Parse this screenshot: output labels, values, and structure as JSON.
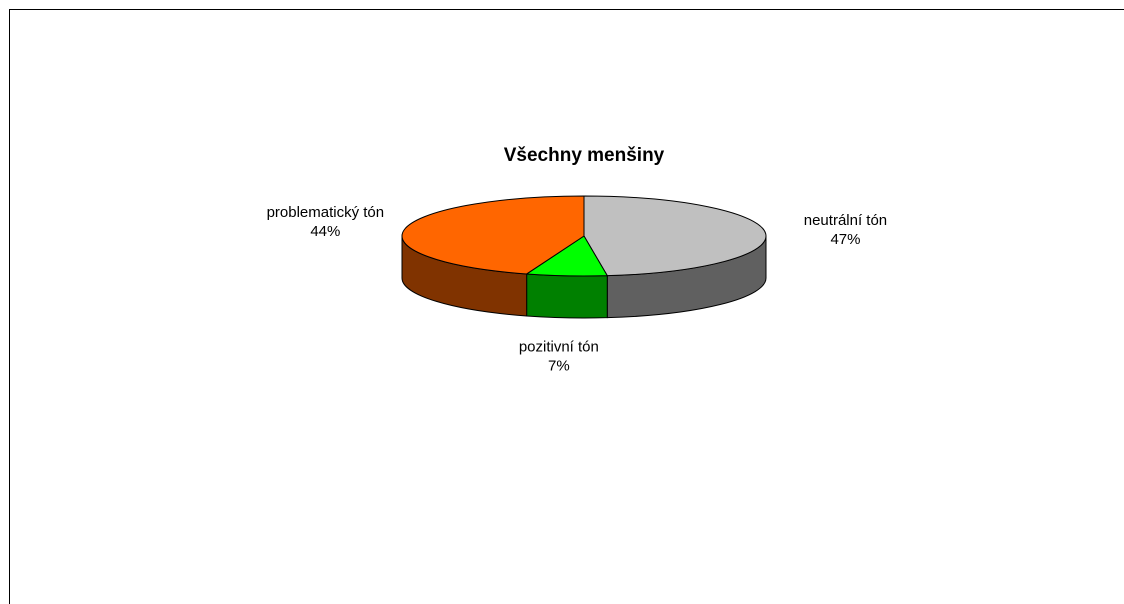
{
  "chart_data": {
    "type": "pie",
    "title": "Všechny menšiny",
    "categories": [
      "neutrální tón",
      "pozitivní tón",
      "problematický tón"
    ],
    "values": [
      47,
      7,
      44
    ],
    "value_labels": [
      "47%",
      "7%",
      "44%"
    ],
    "colors": [
      "#c0c0c0",
      "#00ff00",
      "#ff6600"
    ],
    "three_d": true
  }
}
